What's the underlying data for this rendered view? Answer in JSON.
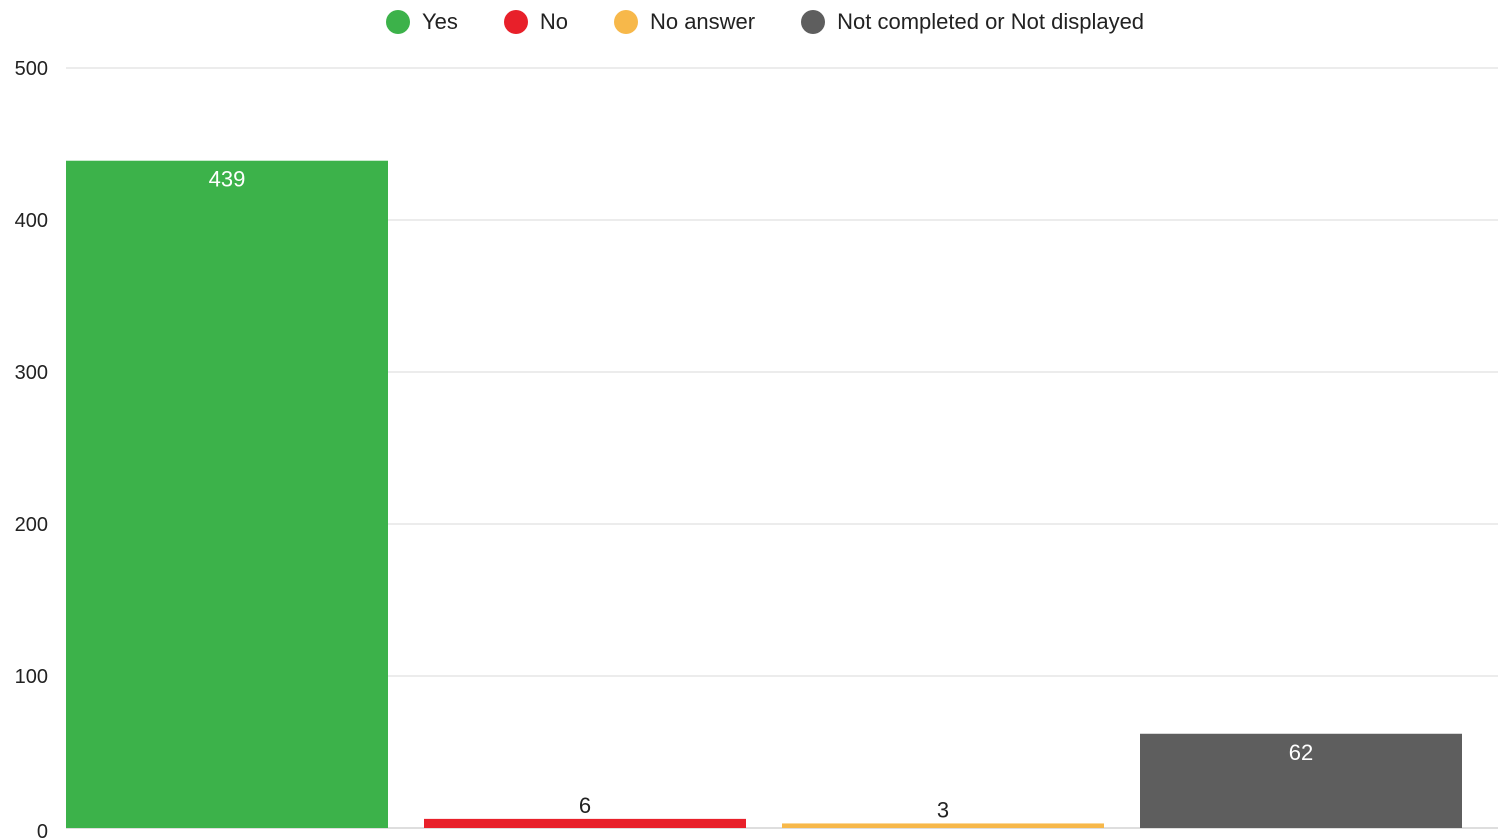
{
  "chart_data": {
    "type": "bar",
    "categories": [
      "Yes",
      "No",
      "No answer",
      "Not completed or Not displayed"
    ],
    "values": [
      439,
      6,
      3,
      62
    ],
    "colors": [
      "#3cb24a",
      "#e8202a",
      "#f7b84a",
      "#5e5e5e"
    ],
    "data_label_colors": [
      "#ffffff",
      "#222222",
      "#222222",
      "#ffffff"
    ],
    "ylim": [
      0,
      500
    ],
    "yticks": [
      "0",
      "100",
      "200",
      "300",
      "400",
      "500"
    ],
    "ytick_values": [
      0,
      100,
      200,
      300,
      400,
      500
    ],
    "grid": true,
    "legend_position": "top-center"
  }
}
